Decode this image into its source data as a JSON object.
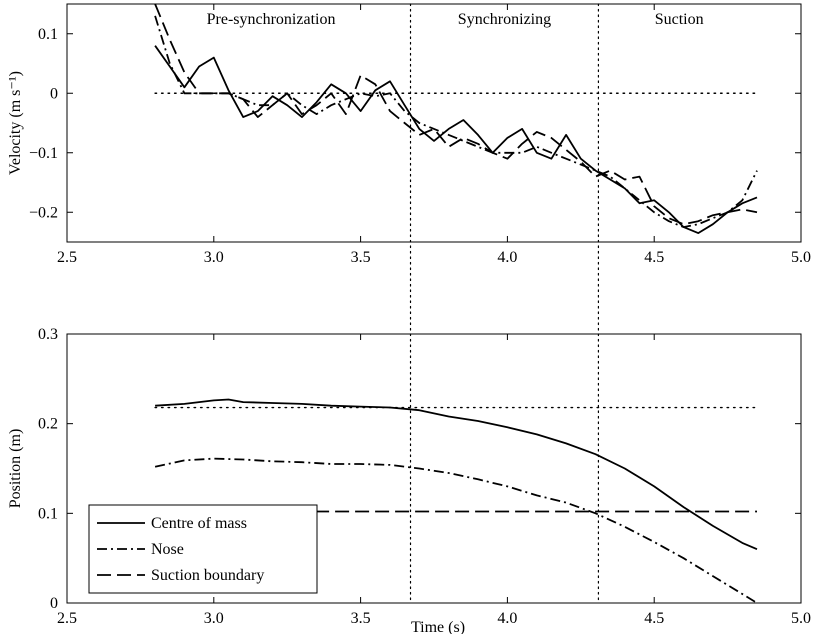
{
  "chart_data": [
    {
      "type": "line",
      "ylabel": "Velocity (m s⁻¹)",
      "xlim": [
        2.5,
        5.0
      ],
      "ylim": [
        -0.25,
        0.15
      ],
      "xticks": [
        "2.5",
        "3.0",
        "3.5",
        "4.0",
        "4.5",
        "5.0"
      ],
      "yticks": [
        "−0.2",
        "−0.1",
        "0",
        "0.1"
      ],
      "phases": [
        "Pre-synchronization",
        "Synchronizing",
        "Suction"
      ],
      "phase_boundaries": [
        3.67,
        4.31
      ],
      "reference_line": {
        "style": "dotted",
        "y": 0,
        "x": [
          2.8,
          4.85
        ]
      },
      "series": [
        {
          "style": "solid",
          "x": [
            2.8,
            2.85,
            2.9,
            2.95,
            3.0,
            3.05,
            3.1,
            3.15,
            3.2,
            3.25,
            3.3,
            3.35,
            3.4,
            3.45,
            3.5,
            3.55,
            3.6,
            3.65,
            3.7,
            3.75,
            3.8,
            3.85,
            3.9,
            3.95,
            4.0,
            4.05,
            4.1,
            4.15,
            4.2,
            4.25,
            4.3,
            4.35,
            4.4,
            4.45,
            4.5,
            4.55,
            4.6,
            4.65,
            4.7,
            4.75,
            4.8,
            4.85
          ],
          "y": [
            0.08,
            0.045,
            0.01,
            0.045,
            0.06,
            0.005,
            -0.04,
            -0.03,
            -0.005,
            -0.02,
            -0.04,
            -0.015,
            0.015,
            0.0,
            -0.03,
            0.005,
            0.02,
            -0.02,
            -0.06,
            -0.08,
            -0.06,
            -0.045,
            -0.07,
            -0.1,
            -0.075,
            -0.06,
            -0.1,
            -0.11,
            -0.07,
            -0.11,
            -0.13,
            -0.145,
            -0.16,
            -0.185,
            -0.18,
            -0.2,
            -0.225,
            -0.235,
            -0.22,
            -0.2,
            -0.185,
            -0.175
          ]
        },
        {
          "style": "dashed",
          "x": [
            2.8,
            2.85,
            2.9,
            2.95,
            3.0,
            3.05,
            3.1,
            3.15,
            3.2,
            3.25,
            3.3,
            3.35,
            3.4,
            3.45,
            3.5,
            3.55,
            3.6,
            3.65,
            3.7,
            3.75,
            3.8,
            3.85,
            3.9,
            3.95,
            4.0,
            4.05,
            4.1,
            4.15,
            4.2,
            4.25,
            4.3,
            4.35,
            4.4,
            4.45,
            4.5,
            4.55,
            4.6,
            4.65,
            4.7,
            4.75,
            4.8,
            4.85
          ],
          "y": [
            0.15,
            0.09,
            0.035,
            0.0,
            0.0,
            0.0,
            -0.01,
            -0.04,
            -0.02,
            0.0,
            -0.035,
            -0.02,
            0.0,
            -0.035,
            0.03,
            0.015,
            -0.03,
            -0.05,
            -0.07,
            -0.06,
            -0.09,
            -0.075,
            -0.085,
            -0.1,
            -0.11,
            -0.085,
            -0.065,
            -0.075,
            -0.095,
            -0.115,
            -0.14,
            -0.13,
            -0.145,
            -0.14,
            -0.19,
            -0.21,
            -0.22,
            -0.215,
            -0.205,
            -0.2,
            -0.195,
            -0.2
          ]
        },
        {
          "style": "dash-dot",
          "x": [
            2.8,
            2.85,
            2.9,
            2.95,
            3.0,
            3.05,
            3.1,
            3.15,
            3.2,
            3.25,
            3.3,
            3.35,
            3.4,
            3.45,
            3.5,
            3.55,
            3.6,
            3.65,
            3.7,
            3.75,
            3.8,
            3.85,
            3.9,
            3.95,
            4.0,
            4.05,
            4.1,
            4.15,
            4.2,
            4.25,
            4.3,
            4.35,
            4.4,
            4.45,
            4.5,
            4.55,
            4.6,
            4.65,
            4.7,
            4.75,
            4.8,
            4.85
          ],
          "y": [
            0.13,
            0.05,
            0.0,
            0.0,
            0.0,
            0.0,
            -0.01,
            -0.02,
            -0.02,
            0.0,
            -0.02,
            -0.035,
            -0.02,
            -0.01,
            0.0,
            -0.005,
            0.0,
            -0.03,
            -0.05,
            -0.06,
            -0.07,
            -0.08,
            -0.09,
            -0.1,
            -0.1,
            -0.1,
            -0.09,
            -0.1,
            -0.11,
            -0.12,
            -0.13,
            -0.14,
            -0.16,
            -0.18,
            -0.2,
            -0.215,
            -0.225,
            -0.22,
            -0.21,
            -0.2,
            -0.18,
            -0.13
          ]
        }
      ]
    },
    {
      "type": "line",
      "xlabel": "Time (s)",
      "ylabel": "Position (m)",
      "xlim": [
        2.5,
        5.0
      ],
      "ylim": [
        0,
        0.3
      ],
      "xticks": [
        "2.5",
        "3.0",
        "3.5",
        "4.0",
        "4.5",
        "5.0"
      ],
      "yticks": [
        "0",
        "0.1",
        "0.2",
        "0.3"
      ],
      "phase_boundaries": [
        3.67,
        4.31
      ],
      "reference_line": {
        "style": "dotted",
        "y": 0.218,
        "x": [
          2.8,
          4.85
        ]
      },
      "legend_position": "bottom-left",
      "series": [
        {
          "name": "Centre of mass",
          "style": "solid",
          "x": [
            2.8,
            2.9,
            3.0,
            3.05,
            3.1,
            3.2,
            3.3,
            3.4,
            3.5,
            3.6,
            3.7,
            3.8,
            3.9,
            4.0,
            4.1,
            4.2,
            4.3,
            4.4,
            4.5,
            4.6,
            4.7,
            4.8,
            4.85
          ],
          "y": [
            0.22,
            0.222,
            0.226,
            0.227,
            0.224,
            0.223,
            0.222,
            0.22,
            0.219,
            0.218,
            0.215,
            0.208,
            0.203,
            0.196,
            0.188,
            0.178,
            0.166,
            0.15,
            0.13,
            0.107,
            0.086,
            0.067,
            0.06
          ]
        },
        {
          "name": "Nose",
          "style": "dash-dot",
          "x": [
            2.8,
            2.9,
            3.0,
            3.1,
            3.2,
            3.3,
            3.4,
            3.5,
            3.6,
            3.7,
            3.8,
            3.9,
            4.0,
            4.1,
            4.2,
            4.3,
            4.4,
            4.5,
            4.6,
            4.7,
            4.8,
            4.85
          ],
          "y": [
            0.152,
            0.159,
            0.161,
            0.16,
            0.158,
            0.157,
            0.155,
            0.155,
            0.154,
            0.15,
            0.145,
            0.138,
            0.13,
            0.12,
            0.112,
            0.1,
            0.085,
            0.068,
            0.05,
            0.03,
            0.01,
            0.0
          ]
        },
        {
          "name": "Suction boundary",
          "style": "dashed",
          "x": [
            2.8,
            4.85
          ],
          "y": [
            0.102,
            0.102
          ]
        }
      ]
    }
  ]
}
